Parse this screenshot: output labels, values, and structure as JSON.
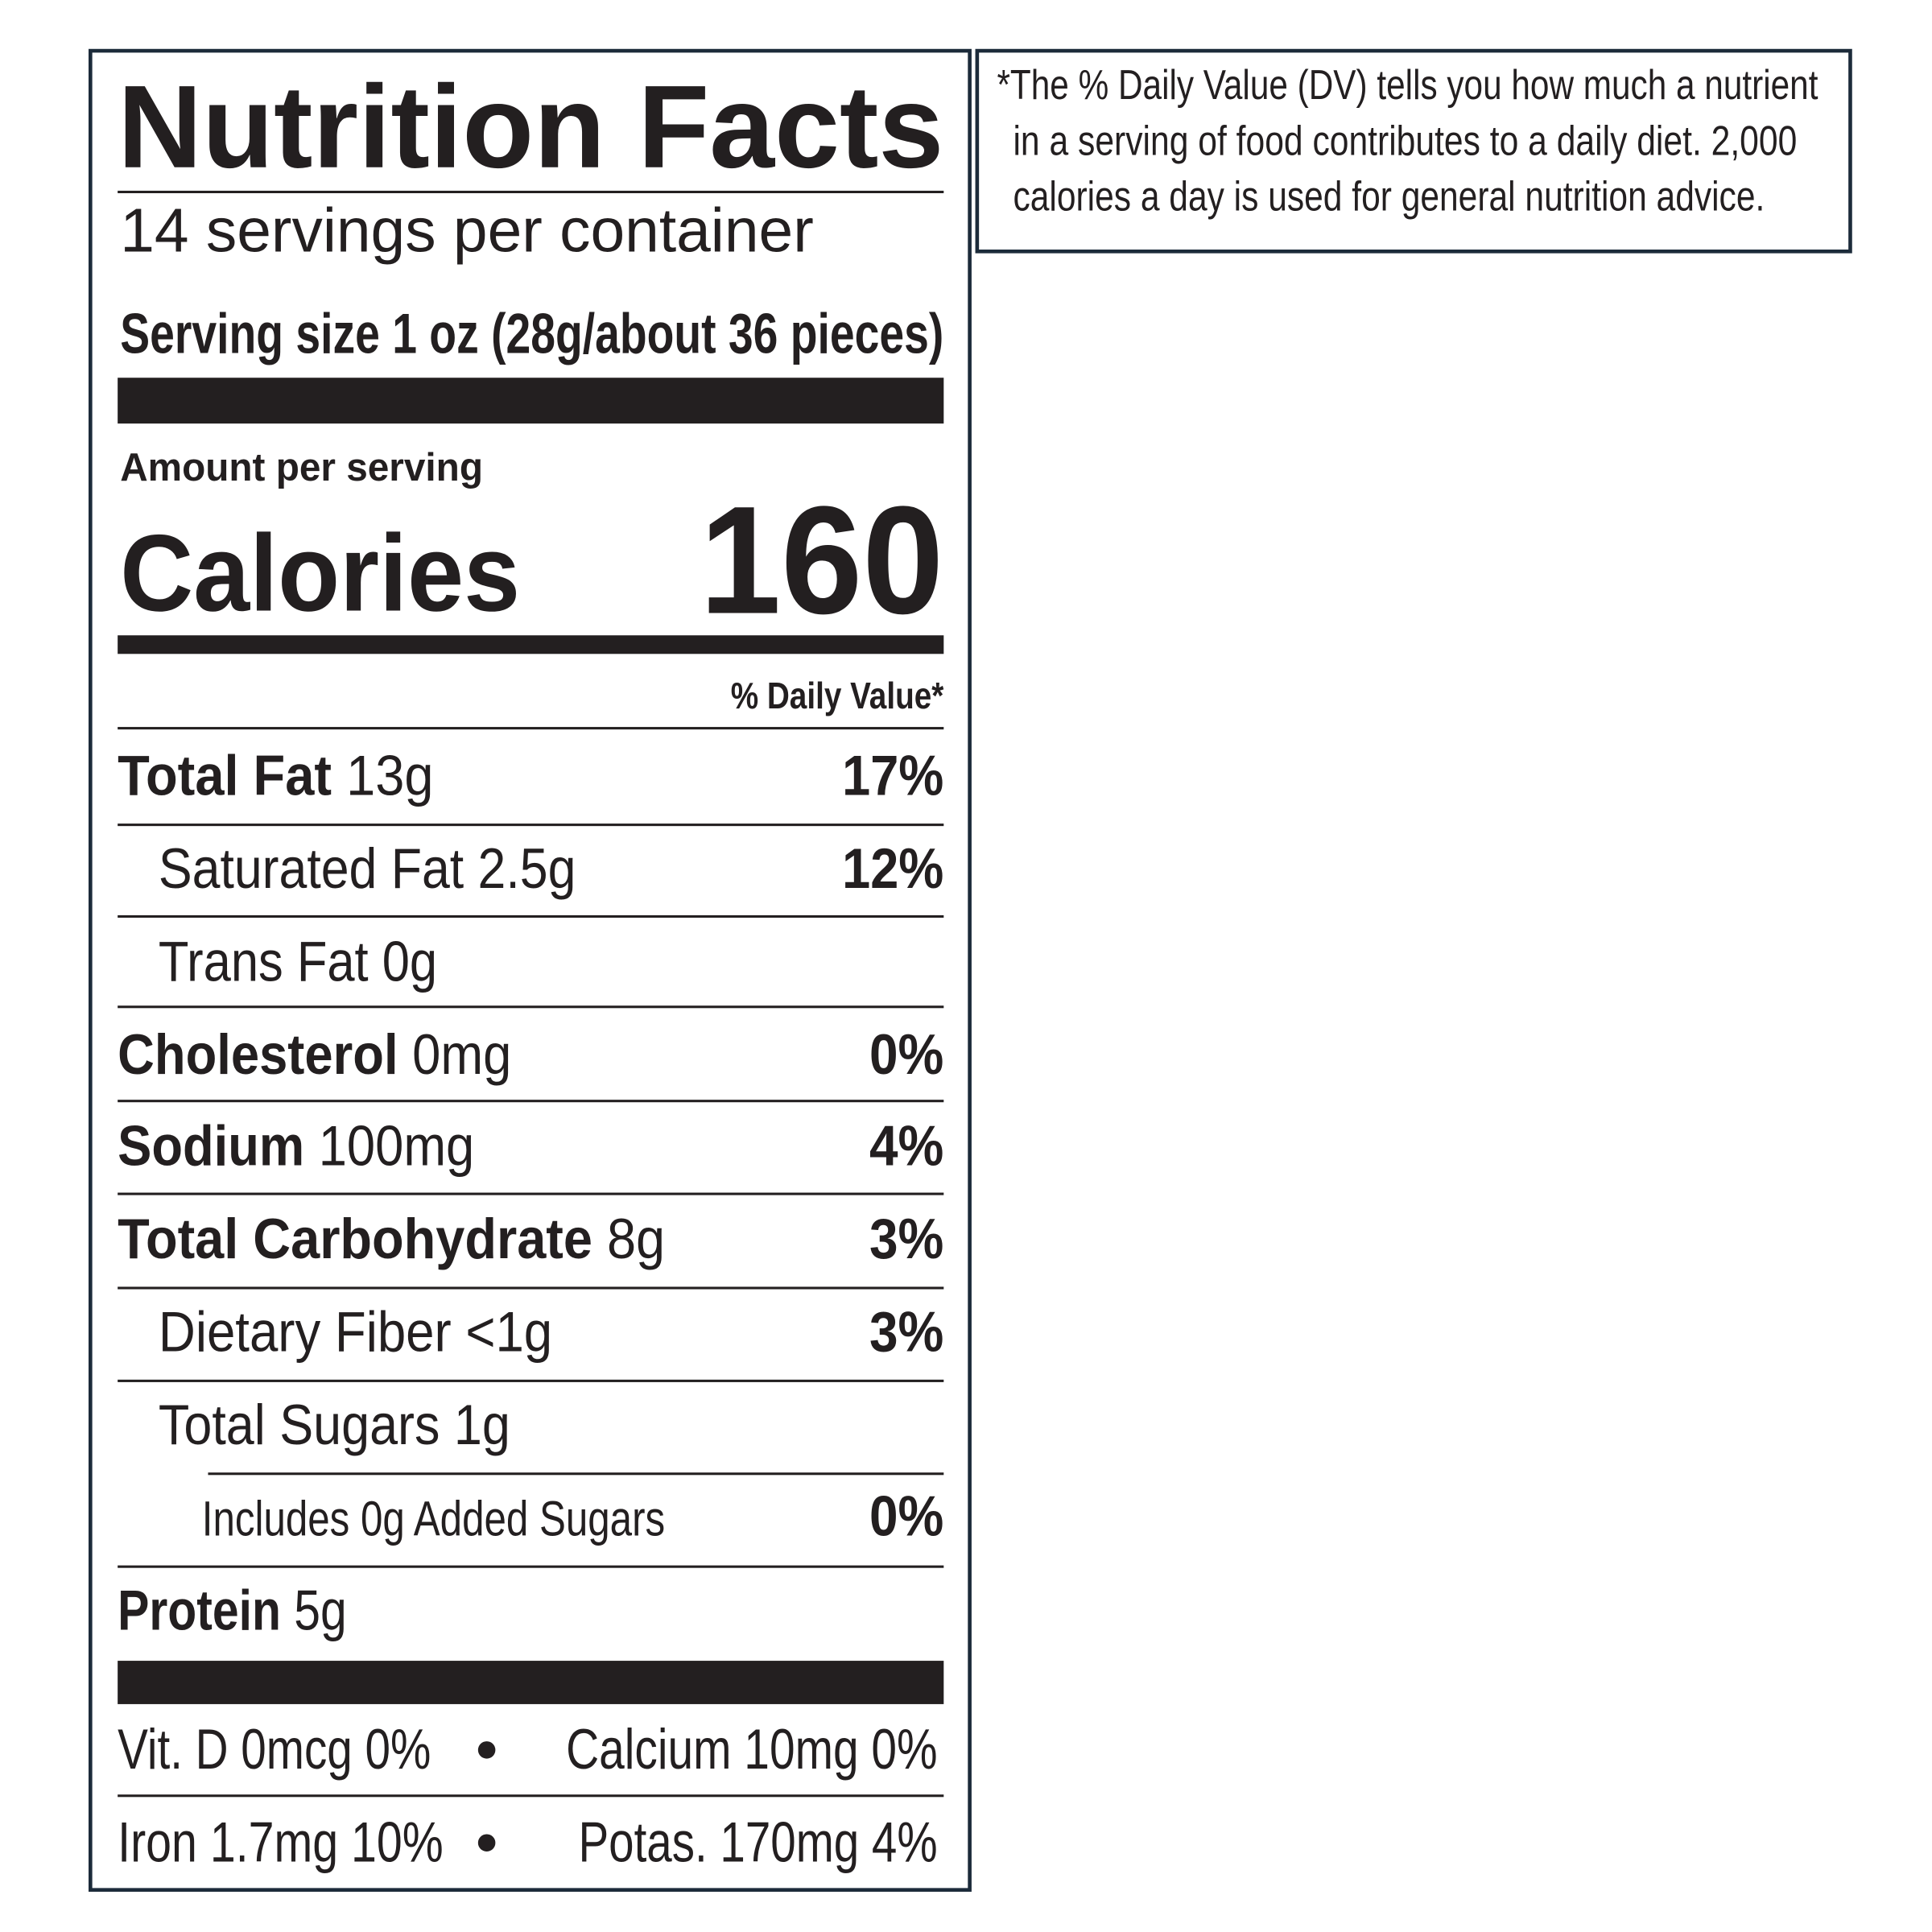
{
  "label": {
    "title": "Nutrition Facts",
    "servings": "14 servings per container",
    "serving_size": "Serving size 1 oz (28g/about 36 pieces)",
    "amount_per_serving": "Amount per serving",
    "calories_label": "Calories",
    "calories": 160,
    "dv_header": "% Daily Value*",
    "rows": [
      {
        "name": "Total Fat",
        "amount": "13g",
        "dv": "17%"
      },
      {
        "name": "Saturated Fat",
        "amount": "2.5g",
        "dv": "12%"
      },
      {
        "name": "Trans Fat",
        "amount": "0g"
      },
      {
        "name": "Cholesterol",
        "amount": "0mg",
        "dv": "0%"
      },
      {
        "name": "Sodium",
        "amount": "100mg",
        "dv": "4%"
      },
      {
        "name": "Total Carbohydrate",
        "amount": "8g",
        "dv": "3%"
      },
      {
        "name": "Dietary Fiber",
        "amount": "<1g",
        "dv": "3%"
      },
      {
        "name": "Total Sugars",
        "amount": "1g"
      },
      {
        "name": "Includes 0g Added Sugars",
        "dv": "0%"
      },
      {
        "name": "Protein",
        "amount": "5g"
      }
    ],
    "vitamins": [
      [
        "Vit. D 0mcg 0%",
        "Calcium 10mg 0%"
      ],
      [
        "Iron 1.7mg 10%",
        "Potas. 170mg 4%"
      ]
    ]
  },
  "footnote": [
    "*The % Daily Value (DV) tells you how much a nutrient",
    "in a serving of food contributes to a daily diet. 2,000",
    "calories a day is used for general nutrition advice."
  ]
}
